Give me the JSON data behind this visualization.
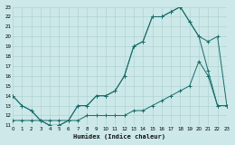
{
  "xlabel": "Humidex (Indice chaleur)",
  "bg_color": "#cce8e8",
  "grid_color": "#aacfcf",
  "line_color": "#1a6b6b",
  "xlim": [
    0,
    23
  ],
  "ylim": [
    11,
    23
  ],
  "xticks": [
    0,
    1,
    2,
    3,
    4,
    5,
    6,
    7,
    8,
    9,
    10,
    11,
    12,
    13,
    14,
    15,
    16,
    17,
    18,
    19,
    20,
    21,
    22,
    23
  ],
  "yticks": [
    11,
    12,
    13,
    14,
    15,
    16,
    17,
    18,
    19,
    20,
    21,
    22,
    23
  ],
  "line1_x": [
    0,
    1,
    2,
    3,
    4,
    5,
    6,
    7,
    8,
    9,
    10,
    11,
    12,
    13,
    14,
    15,
    16,
    17,
    18,
    19,
    20,
    21,
    22,
    23
  ],
  "line1_y": [
    14,
    13,
    12.5,
    11.5,
    11,
    11,
    11.5,
    13,
    13,
    14,
    14,
    14.5,
    16,
    19,
    19.5,
    22,
    22,
    22.5,
    23,
    21.5,
    20,
    19.5,
    20,
    13
  ],
  "line2_x": [
    0,
    1,
    2,
    3,
    4,
    5,
    6,
    7,
    8,
    9,
    10,
    11,
    12,
    13,
    14,
    15,
    16,
    17,
    18,
    19,
    20,
    21,
    22,
    23
  ],
  "line2_y": [
    14,
    13,
    12.5,
    11.5,
    11,
    11,
    11.5,
    13,
    13,
    14,
    14,
    14.5,
    16,
    19,
    19.5,
    22,
    22,
    22.5,
    23,
    21.5,
    20,
    16.5,
    13,
    13
  ],
  "line3_x": [
    0,
    1,
    2,
    3,
    4,
    5,
    6,
    7,
    8,
    9,
    10,
    11,
    12,
    13,
    14,
    15,
    16,
    17,
    18,
    19,
    20,
    21,
    22,
    23
  ],
  "line3_y": [
    11.5,
    11.5,
    11.5,
    11.5,
    11.5,
    11.5,
    11.5,
    11.5,
    12,
    12,
    12,
    12,
    12,
    12.5,
    12.5,
    13,
    13.5,
    14,
    14.5,
    15,
    17.5,
    16,
    13,
    13
  ]
}
